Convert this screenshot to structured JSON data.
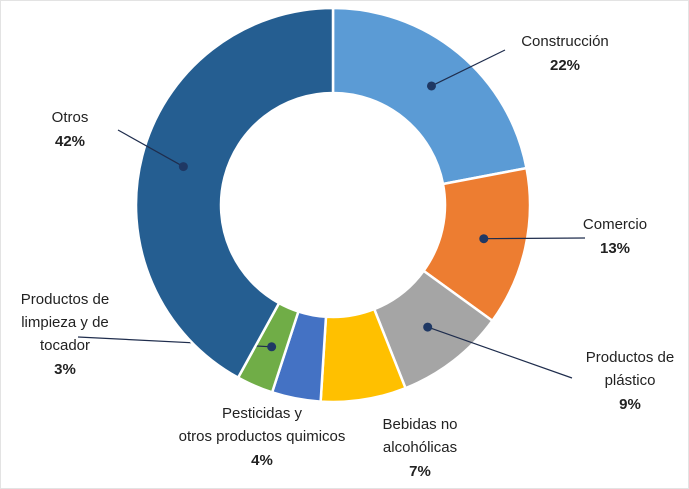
{
  "chart_data": {
    "type": "donut",
    "categories": [
      "Construcción",
      "Comercio",
      "Productos de\nplástico",
      "Bebidas no\nalcohólicas",
      "Pesticidas y\notros productos quimicos",
      "Productos de\nlimpieza y de\ntocador",
      "Otros"
    ],
    "values": [
      22,
      13,
      9,
      7,
      4,
      3,
      42
    ],
    "value_labels": [
      "22%",
      "13%",
      "9%",
      "7%",
      "4%",
      "3%",
      "42%"
    ],
    "colors": [
      "#5b9bd5",
      "#ed7d31",
      "#a5a5a5",
      "#ffc000",
      "#4472c4",
      "#70ad47",
      "#255e91"
    ]
  }
}
